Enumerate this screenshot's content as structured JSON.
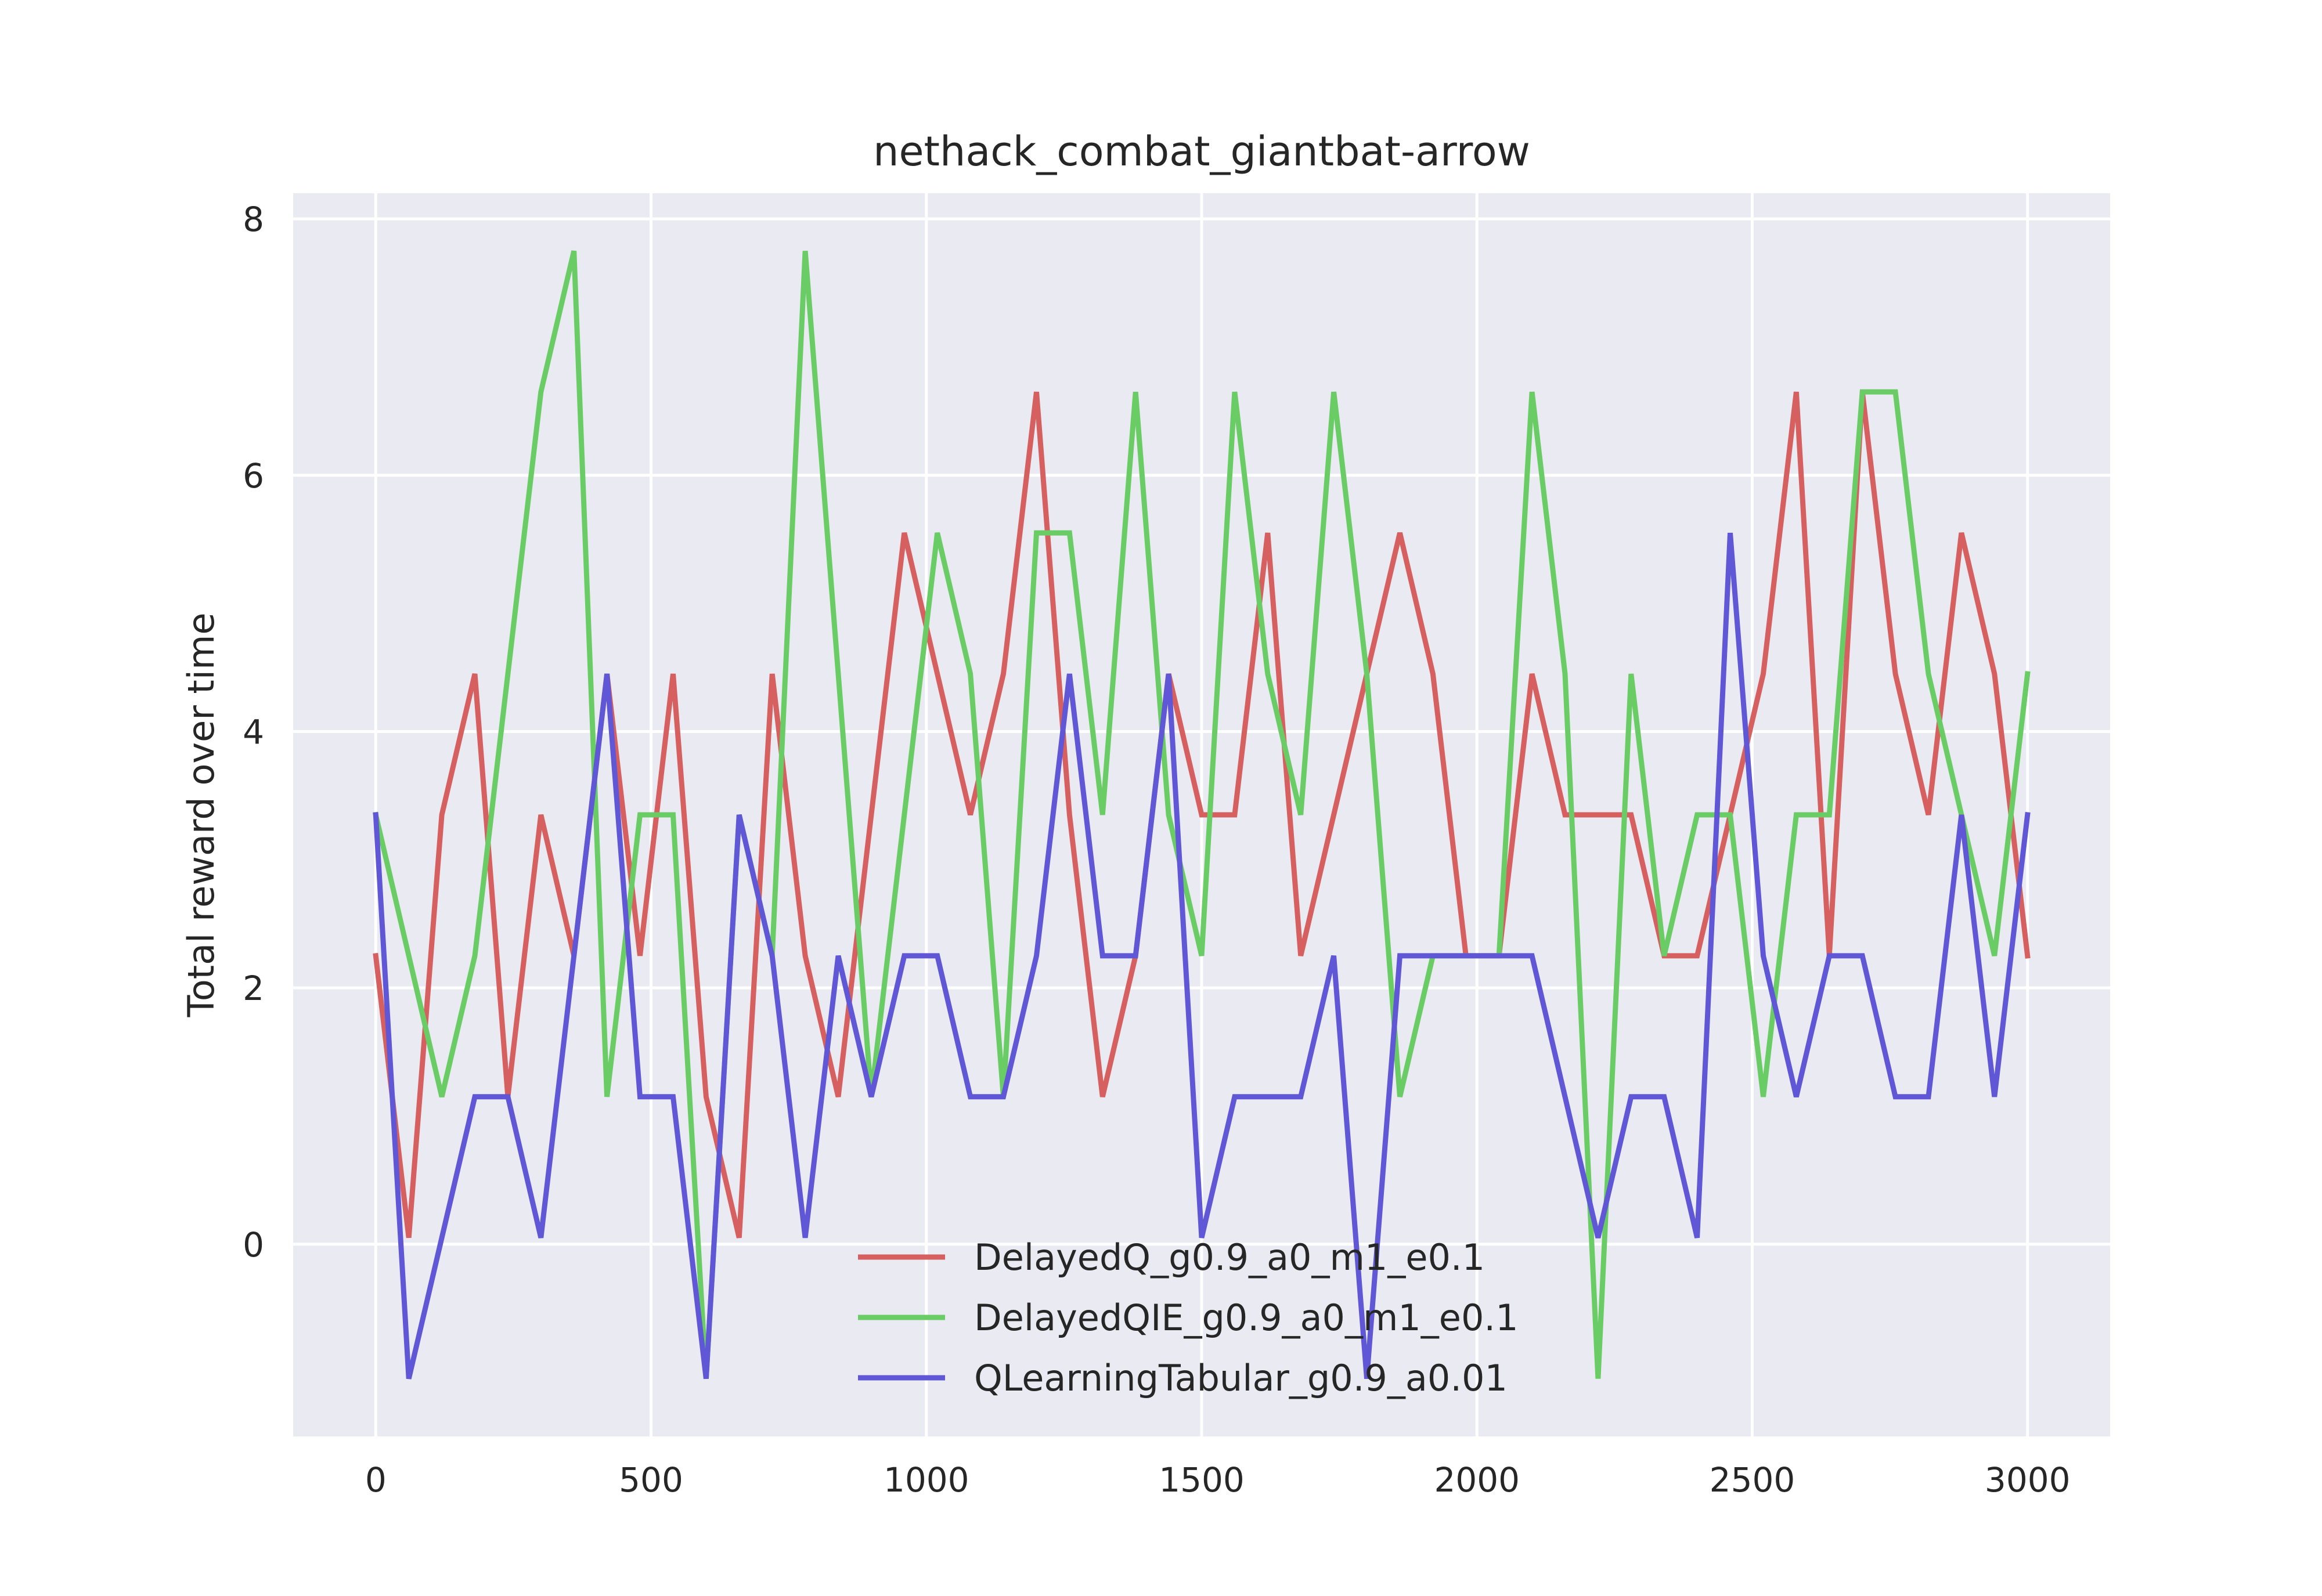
{
  "chart_data": {
    "type": "line",
    "title": "nethack_combat_giantbat-arrow",
    "xlabel": "",
    "ylabel": "Total reward over time",
    "xlim": [
      -150,
      3150
    ],
    "ylim": [
      -1.5,
      8.2
    ],
    "xticks": [
      0,
      500,
      1000,
      1500,
      2000,
      2500,
      3000
    ],
    "yticks": [
      0,
      2,
      4,
      6,
      8
    ],
    "grid": true,
    "legend_position": "lower-center",
    "x": [
      0,
      60,
      120,
      180,
      240,
      300,
      360,
      420,
      480,
      540,
      600,
      660,
      720,
      780,
      840,
      900,
      960,
      1020,
      1080,
      1140,
      1200,
      1260,
      1320,
      1380,
      1440,
      1500,
      1560,
      1620,
      1680,
      1740,
      1800,
      1860,
      1920,
      1980,
      2040,
      2100,
      2160,
      2220,
      2280,
      2340,
      2400,
      2460,
      2520,
      2580,
      2640,
      2700,
      2760,
      2820,
      2880,
      2940,
      3000
    ],
    "series": [
      {
        "name": "DelayedQ_g0.9_a0_m1_e0.1",
        "color": "#d65f5f",
        "values": [
          2.25,
          0.05,
          3.35,
          4.45,
          1.15,
          3.35,
          2.25,
          4.45,
          2.25,
          4.45,
          1.15,
          0.05,
          4.45,
          2.25,
          1.15,
          3.35,
          5.55,
          4.45,
          3.35,
          4.45,
          6.65,
          3.35,
          1.15,
          2.25,
          4.45,
          3.35,
          3.35,
          5.55,
          2.25,
          3.35,
          4.45,
          5.55,
          4.45,
          2.25,
          2.25,
          4.45,
          3.35,
          3.35,
          3.35,
          2.25,
          2.25,
          3.35,
          4.45,
          6.65,
          2.25,
          6.65,
          4.45,
          3.35,
          5.55,
          4.45,
          2.25
        ]
      },
      {
        "name": "DelayedQIE_g0.9_a0_m1_e0.1",
        "color": "#6acc64",
        "values": [
          3.35,
          2.25,
          1.15,
          2.25,
          4.45,
          6.65,
          7.75,
          1.15,
          3.35,
          3.35,
          -1.05,
          3.35,
          2.25,
          7.75,
          4.45,
          1.15,
          3.35,
          5.55,
          4.45,
          1.15,
          5.55,
          5.55,
          3.35,
          6.65,
          3.35,
          2.25,
          6.65,
          4.45,
          3.35,
          6.65,
          4.45,
          1.15,
          2.25,
          2.25,
          2.25,
          6.65,
          4.45,
          -1.05,
          4.45,
          2.25,
          3.35,
          3.35,
          1.15,
          3.35,
          3.35,
          6.65,
          6.65,
          4.45,
          3.35,
          2.25,
          4.45
        ]
      },
      {
        "name": "QLearningTabular_g0.9_a0.01",
        "color": "#5f57d6",
        "values": [
          3.35,
          -1.05,
          0.05,
          1.15,
          1.15,
          0.05,
          2.25,
          4.45,
          1.15,
          1.15,
          -1.05,
          3.35,
          2.25,
          0.05,
          2.25,
          1.15,
          2.25,
          2.25,
          1.15,
          1.15,
          2.25,
          4.45,
          2.25,
          2.25,
          4.45,
          0.05,
          1.15,
          1.15,
          1.15,
          2.25,
          -1.05,
          2.25,
          2.25,
          2.25,
          2.25,
          2.25,
          1.15,
          0.05,
          1.15,
          1.15,
          0.05,
          5.55,
          2.25,
          1.15,
          2.25,
          2.25,
          1.15,
          1.15,
          3.35,
          1.15,
          3.35
        ]
      }
    ]
  }
}
